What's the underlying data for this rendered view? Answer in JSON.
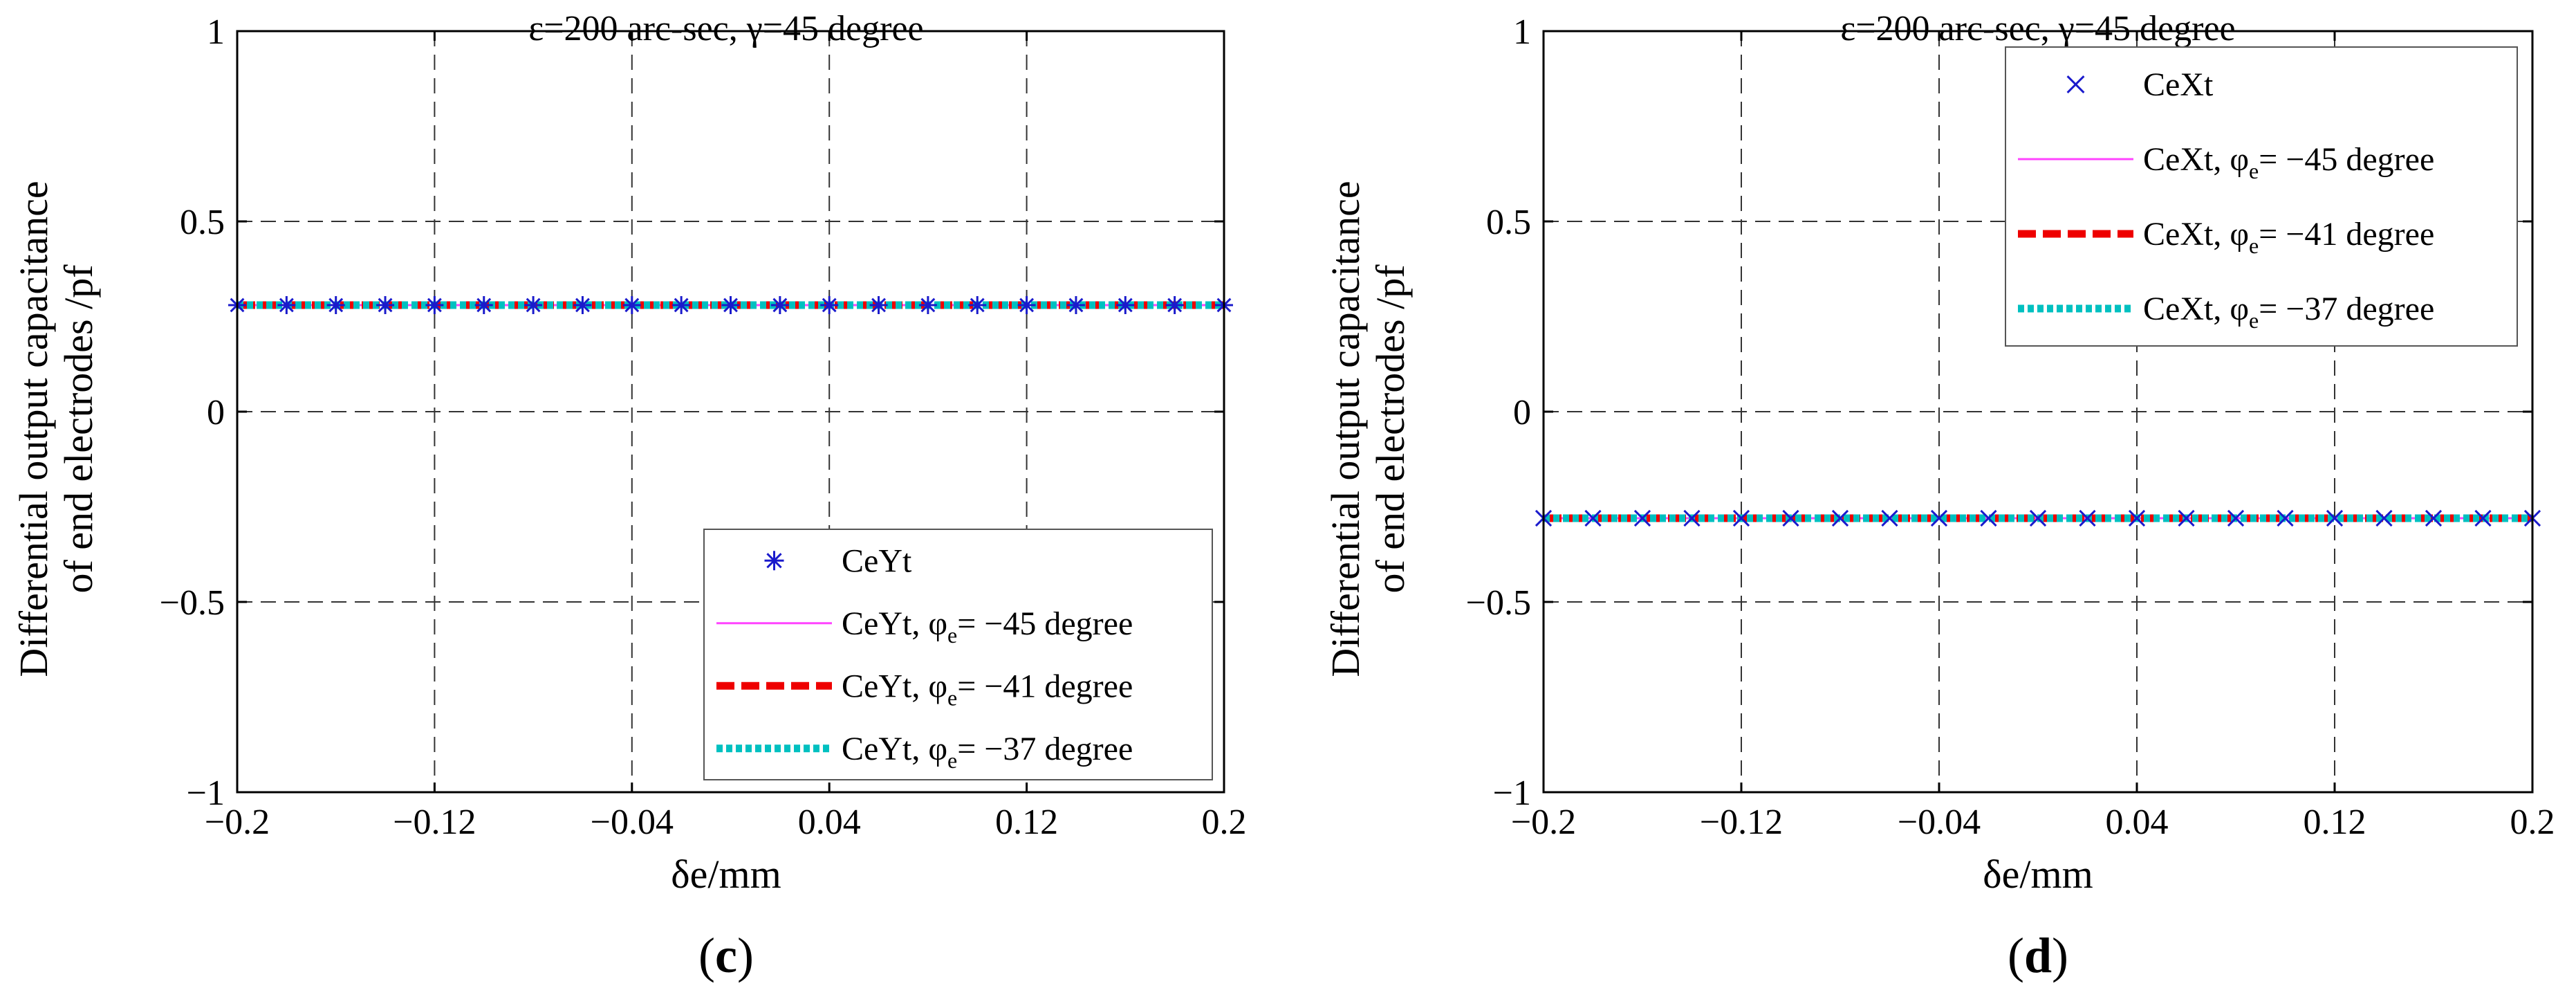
{
  "chart_data": [
    {
      "panel": "(c)",
      "panel_letter": "c",
      "type": "line",
      "title": "ε=200 arc-sec, γ=45 degree",
      "xlabel": "δe/mm",
      "ylabel_line1": "Differential output capacitance",
      "ylabel_line2": "of end electrodes /pf",
      "xlim": [
        -0.2,
        0.2
      ],
      "ylim": [
        -1,
        1
      ],
      "xticks": [
        -0.2,
        -0.12,
        -0.04,
        0.04,
        0.12,
        0.2
      ],
      "xtick_labels": [
        "−0.2",
        "−0.12",
        "−0.04",
        "0.04",
        "0.12",
        "0.2"
      ],
      "yticks": [
        -1,
        -0.5,
        0,
        0.5,
        1
      ],
      "ytick_labels": [
        "−1",
        "−0.5",
        "0",
        "0.5",
        "1"
      ],
      "grid": true,
      "legend_position": "bottom-right",
      "marker_symbol": "asterisk",
      "marker_x": [
        -0.2,
        -0.18,
        -0.16,
        -0.14,
        -0.12,
        -0.1,
        -0.08,
        -0.06,
        -0.04,
        -0.02,
        0.0,
        0.02,
        0.04,
        0.06,
        0.08,
        0.1,
        0.12,
        0.14,
        0.16,
        0.18,
        0.2
      ],
      "series": [
        {
          "name": "CeYt",
          "label_prefix": "CeYt",
          "phi_value": "",
          "label_suffix": "",
          "style": "marker",
          "color": "#1a1acc",
          "value": 0.28
        },
        {
          "name": "CeYt, φe= −45 degree",
          "label_prefix": "CeYt, φ",
          "phi_value": "= −45 degree",
          "label_suffix": "e",
          "style": "thin",
          "color": "#ff44ff",
          "value": 0.28
        },
        {
          "name": "CeYt, φe= −41 degree",
          "label_prefix": "CeYt, φ",
          "phi_value": "= −41 degree",
          "label_suffix": "e",
          "style": "dashed",
          "color": "#ee0000",
          "value": 0.28
        },
        {
          "name": "CeYt, φe= −37 degree",
          "label_prefix": "CeYt, φ",
          "phi_value": "= −37 degree",
          "label_suffix": "e",
          "style": "dotted",
          "color": "#00c0c0",
          "value": 0.28
        }
      ]
    },
    {
      "panel": "(d)",
      "panel_letter": "d",
      "type": "line",
      "title": "ε=200 arc-sec, γ=45 degree",
      "xlabel": "δe/mm",
      "ylabel_line1": "Differential output capacitance",
      "ylabel_line2": "of end electrodes /pf",
      "xlim": [
        -0.2,
        0.2
      ],
      "ylim": [
        -1,
        1
      ],
      "xticks": [
        -0.2,
        -0.12,
        -0.04,
        0.04,
        0.12,
        0.2
      ],
      "xtick_labels": [
        "−0.2",
        "−0.12",
        "−0.04",
        "0.04",
        "0.12",
        "0.2"
      ],
      "yticks": [
        -1,
        -0.5,
        0,
        0.5,
        1
      ],
      "ytick_labels": [
        "−1",
        "−0.5",
        "0",
        "0.5",
        "1"
      ],
      "grid": true,
      "legend_position": "top-right",
      "marker_symbol": "x",
      "marker_x": [
        -0.2,
        -0.18,
        -0.16,
        -0.14,
        -0.12,
        -0.1,
        -0.08,
        -0.06,
        -0.04,
        -0.02,
        0.0,
        0.02,
        0.04,
        0.06,
        0.08,
        0.1,
        0.12,
        0.14,
        0.16,
        0.18,
        0.2
      ],
      "series": [
        {
          "name": "CeXt",
          "label_prefix": "CeXt",
          "phi_value": "",
          "label_suffix": "",
          "style": "marker",
          "color": "#1a1acc",
          "value": -0.28
        },
        {
          "name": "CeXt, φe= −45 degree",
          "label_prefix": "CeXt, φ",
          "phi_value": "= −45 degree",
          "label_suffix": "e",
          "style": "thin",
          "color": "#ff44ff",
          "value": -0.28
        },
        {
          "name": "CeXt, φe= −41 degree",
          "label_prefix": "CeXt, φ",
          "phi_value": "= −41 degree",
          "label_suffix": "e",
          "style": "dashed",
          "color": "#ee0000",
          "value": -0.28
        },
        {
          "name": "CeXt, φe= −37 degree",
          "label_prefix": "CeXt, φ",
          "phi_value": "= −37 degree",
          "label_suffix": "e",
          "style": "dotted",
          "color": "#00c0c0",
          "value": -0.28
        }
      ]
    }
  ]
}
